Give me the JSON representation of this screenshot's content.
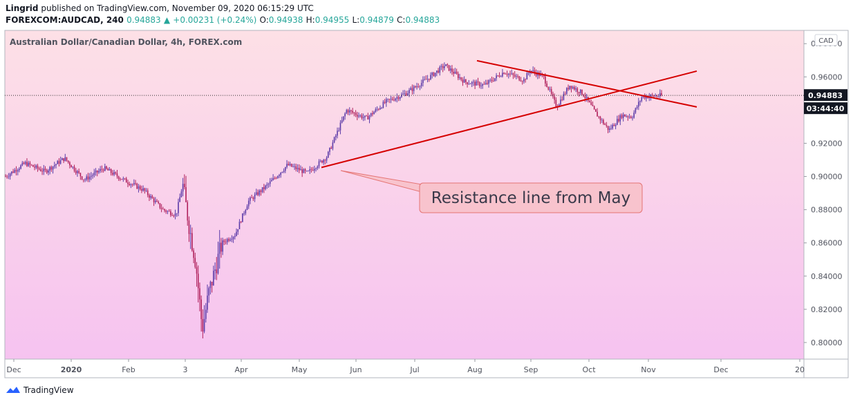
{
  "header": {
    "publisher": "Lingrid",
    "published_text": "published on TradingView.com, November 09, 2020 06:15:29 UTC",
    "symbol": "FOREXCOM:AUDCAD, 240",
    "last": "0.94883",
    "change": "+0.00231 (+0.24%)",
    "open_label": "O:",
    "open": "0.94938",
    "high_label": "H:",
    "high": "0.94955",
    "low_label": "L:",
    "low": "0.94879",
    "close_label": "C:",
    "close": "0.94883"
  },
  "footer": {
    "brand": "TradingView"
  },
  "colors": {
    "bg_top": "#fde0e6",
    "bg_bottom": "#f6c3f0",
    "trendline": "#d50000",
    "candle_up": "#5b3aa8",
    "candle_down": "#b0205c",
    "callout_fill": "#f8c3cd",
    "callout_border": "#e57373"
  },
  "chart_data": {
    "type": "candlestick",
    "title": "Australian Dollar/Canadian Dollar, 4h, FOREX.com",
    "currency": "CAD",
    "ylim": [
      0.79,
      0.988
    ],
    "yticks": [
      "0.98000",
      "0.96000",
      "0.94000",
      "0.92000",
      "0.90000",
      "0.88000",
      "0.86000",
      "0.84000",
      "0.82000",
      "0.80000"
    ],
    "xticks": [
      "Dec",
      "2020",
      "Feb",
      "3",
      "Apr",
      "May",
      "Jun",
      "Jul",
      "Aug",
      "Sep",
      "Oct",
      "Nov",
      "Dec",
      "20"
    ],
    "price_label": "0.94883",
    "countdown": "03:44:40",
    "price_path": [
      [
        0,
        0.9
      ],
      [
        0.03,
        0.908
      ],
      [
        0.06,
        0.903
      ],
      [
        0.09,
        0.911
      ],
      [
        0.12,
        0.898
      ],
      [
        0.15,
        0.905
      ],
      [
        0.18,
        0.898
      ],
      [
        0.21,
        0.892
      ],
      [
        0.24,
        0.88
      ],
      [
        0.26,
        0.877
      ],
      [
        0.27,
        0.895
      ],
      [
        0.28,
        0.87
      ],
      [
        0.29,
        0.848
      ],
      [
        0.3,
        0.808
      ],
      [
        0.31,
        0.83
      ],
      [
        0.33,
        0.86
      ],
      [
        0.35,
        0.865
      ],
      [
        0.37,
        0.885
      ],
      [
        0.4,
        0.895
      ],
      [
        0.43,
        0.907
      ],
      [
        0.46,
        0.902
      ],
      [
        0.49,
        0.912
      ],
      [
        0.52,
        0.94
      ],
      [
        0.55,
        0.935
      ],
      [
        0.58,
        0.945
      ],
      [
        0.61,
        0.95
      ],
      [
        0.64,
        0.958
      ],
      [
        0.67,
        0.967
      ],
      [
        0.7,
        0.957
      ],
      [
        0.73,
        0.955
      ],
      [
        0.76,
        0.963
      ],
      [
        0.79,
        0.958
      ],
      [
        0.8,
        0.964
      ],
      [
        0.82,
        0.96
      ],
      [
        0.84,
        0.942
      ],
      [
        0.86,
        0.955
      ],
      [
        0.88,
        0.95
      ],
      [
        0.9,
        0.938
      ],
      [
        0.92,
        0.928
      ],
      [
        0.94,
        0.937
      ],
      [
        0.955,
        0.936
      ],
      [
        0.97,
        0.948
      ],
      [
        1.0,
        0.9488
      ]
    ],
    "resistance_line": {
      "from": {
        "date": "May",
        "value": 0.902
      },
      "to": {
        "date": "Nov",
        "value": 0.956
      }
    },
    "falling_line": {
      "from": {
        "date": "Aug",
        "value": 0.97
      },
      "to": {
        "date": "Nov",
        "value": 0.948
      }
    },
    "annotation": "Resistance line from May"
  }
}
